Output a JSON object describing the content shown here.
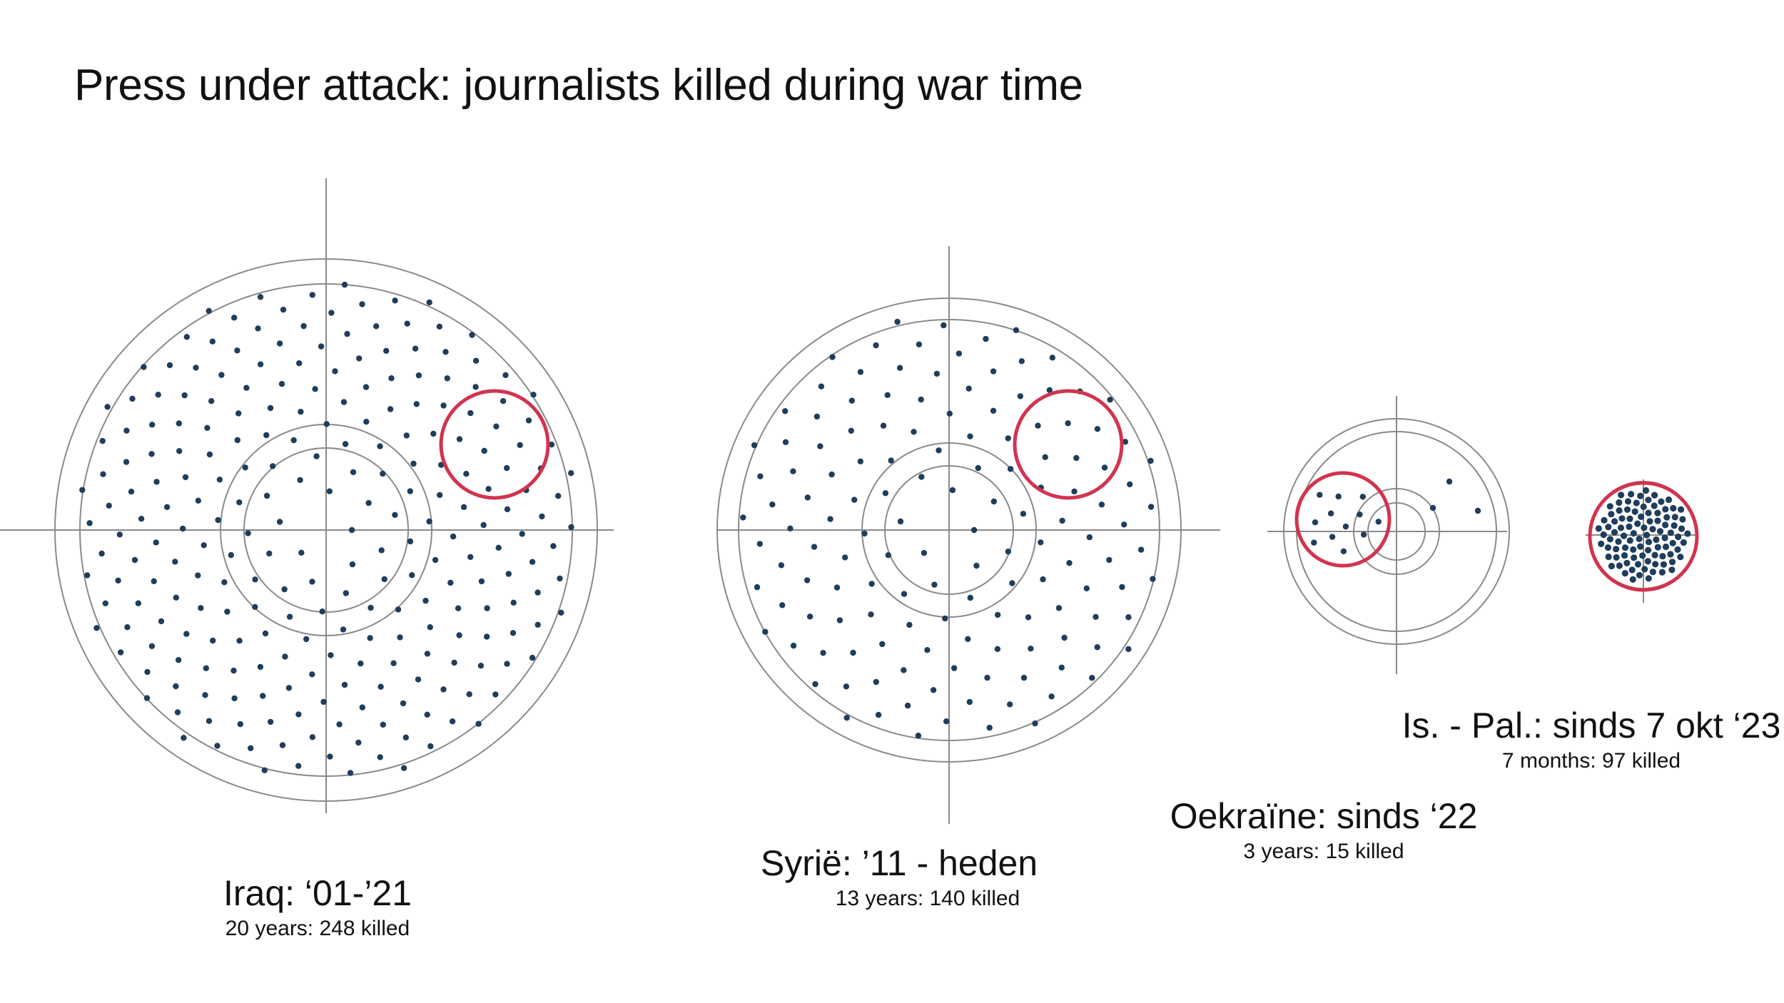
{
  "title": "Press under attack: journalists killed during war time",
  "colors": {
    "dot": "#1f3d5c",
    "ring": "#8a8a8a",
    "highlight": "#d2334f",
    "axis": "#8a8a8a"
  },
  "chart_data": {
    "type": "scatter",
    "title": "Press under attack: journalists killed during war time",
    "series": [
      {
        "name": "Iraq: ‘01-’21",
        "label": "Iraq: ‘01-’21",
        "caption": "20 years: 248 killed",
        "years": 20,
        "killed": 248
      },
      {
        "name": "Syrië: ’11 - heden",
        "label": "Syrië: ’11 - heden",
        "caption": "13 years: 140 killed",
        "years": 13,
        "killed": 140
      },
      {
        "name": "Oekraïne: sinds ‘22",
        "label": "Oekraïne: sinds ‘22",
        "caption": "3 years: 15 killed",
        "years": 3,
        "killed": 15
      },
      {
        "name": "Is. - Pal.: sinds 7 okt  ‘23",
        "label": "Is. - Pal.: sinds 7 okt  ‘23",
        "caption": "7 months: 97 killed",
        "months": 7,
        "killed": 97
      }
    ]
  }
}
